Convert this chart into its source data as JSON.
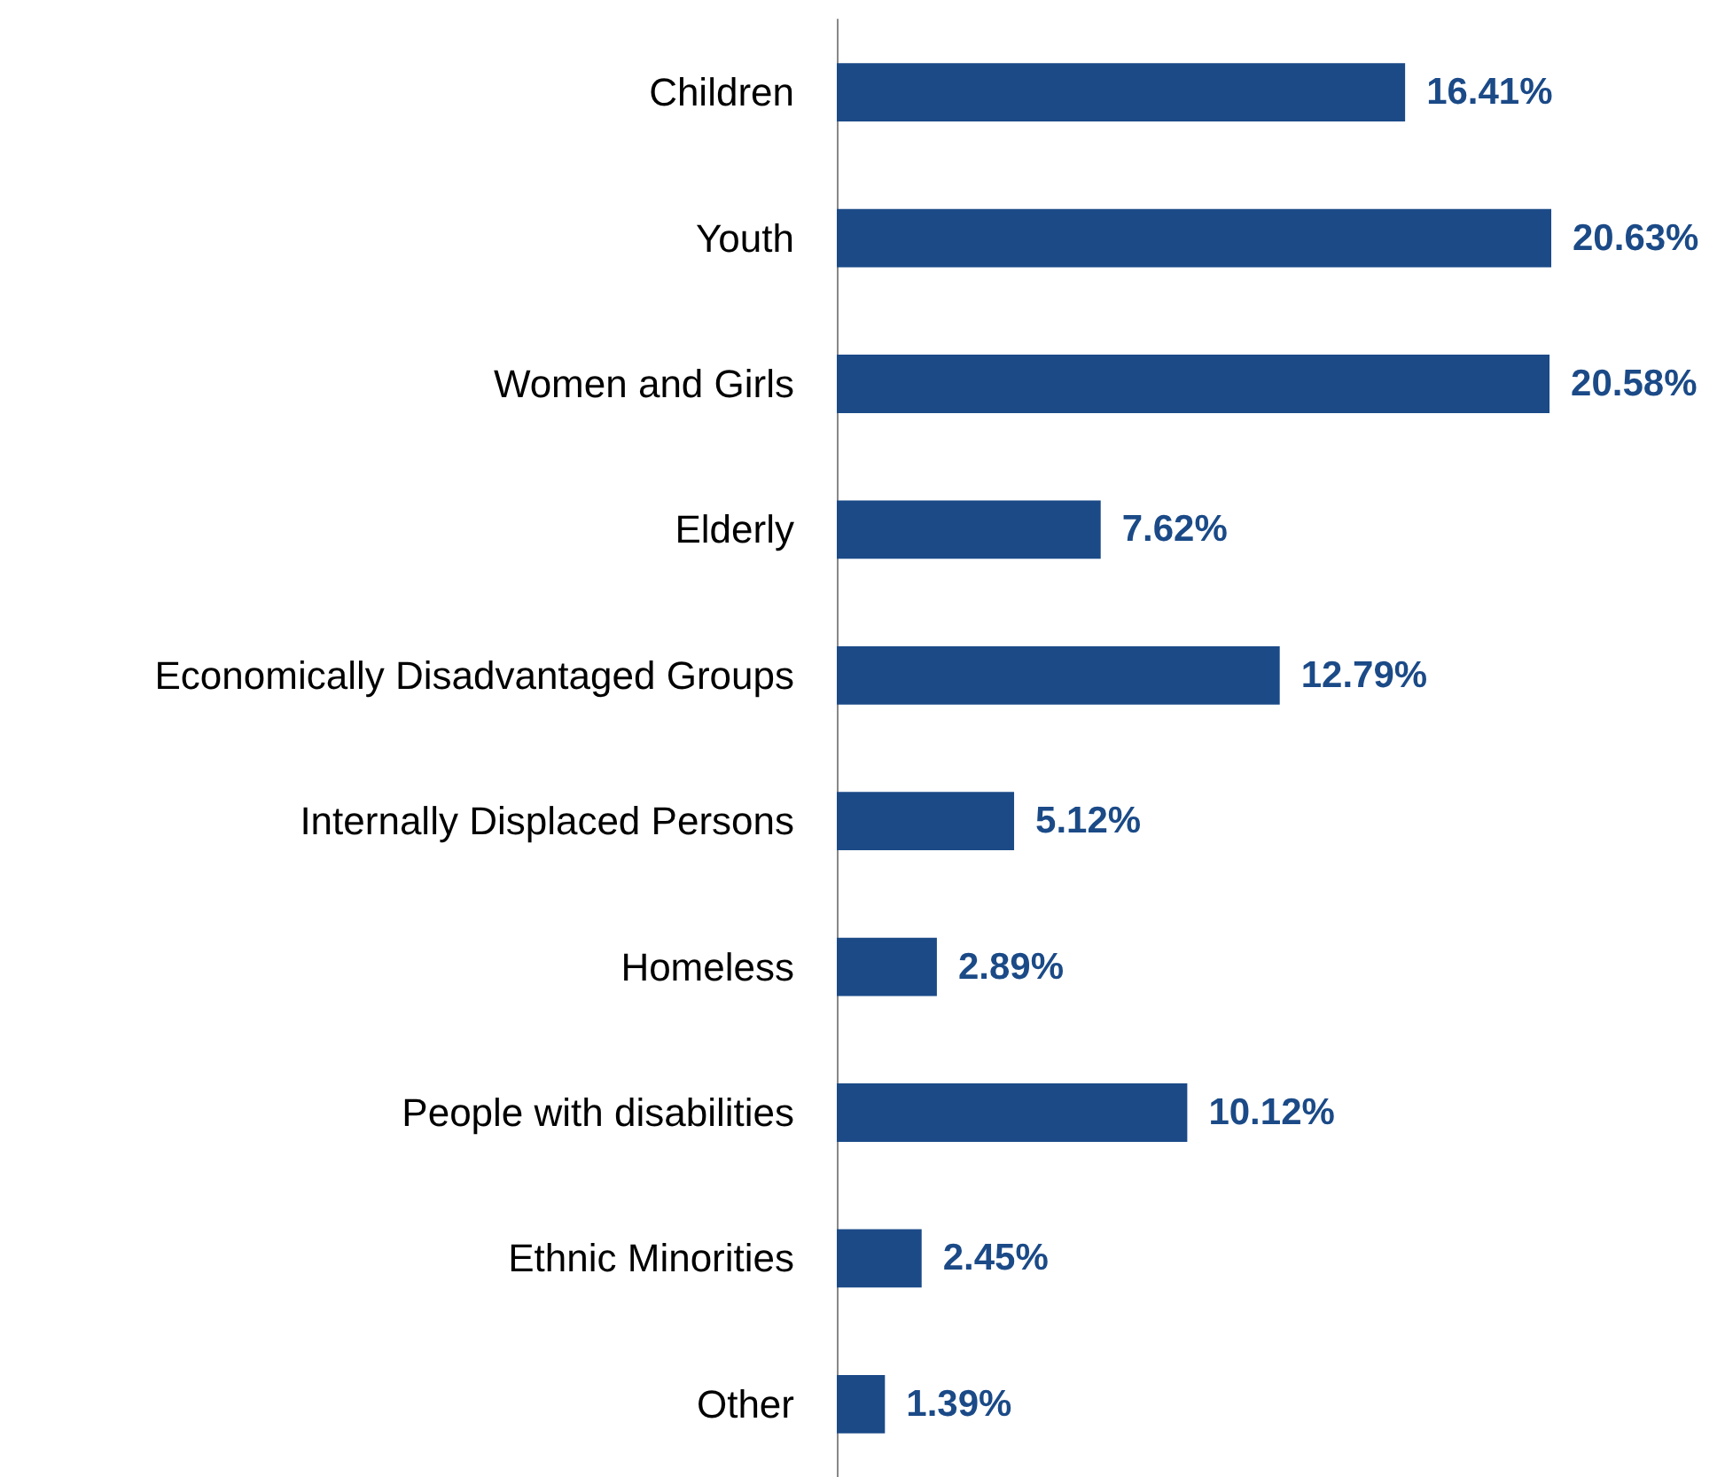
{
  "chart_data": {
    "type": "bar",
    "orientation": "horizontal",
    "categories": [
      "Children",
      "Youth",
      "Women and Girls",
      "Elderly",
      "Economically Disadvantaged Groups",
      "Internally Displaced Persons",
      "Homeless",
      "People with disabilities",
      "Ethnic Minorities",
      "Other"
    ],
    "values": [
      16.41,
      20.63,
      20.58,
      7.62,
      12.79,
      5.12,
      2.89,
      10.12,
      2.45,
      1.39
    ],
    "value_labels": [
      "16.41%",
      "20.63%",
      "20.58%",
      "7.62%",
      "12.79%",
      "5.12%",
      "2.89%",
      "10.12%",
      "2.45%",
      "1.39%"
    ],
    "color": "#1b4a87"
  }
}
